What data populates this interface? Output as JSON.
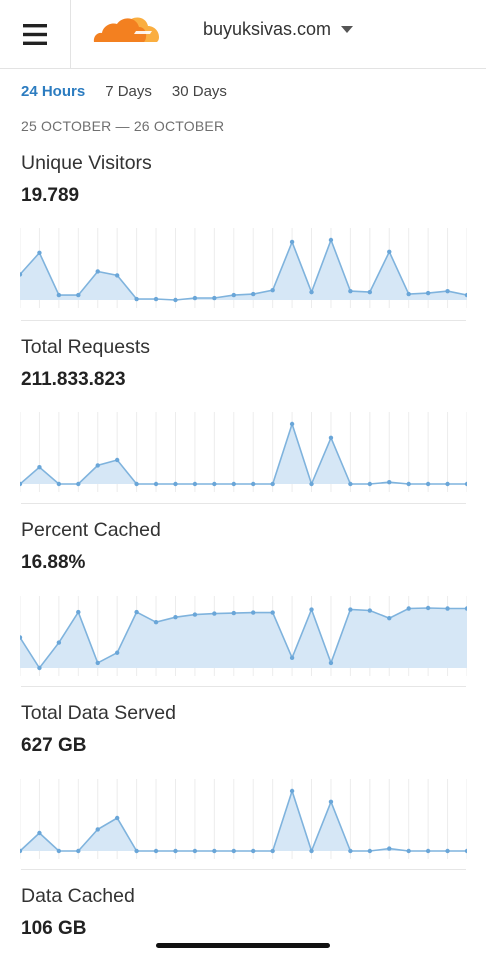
{
  "header": {
    "domain": "buyuksivas.com",
    "brand_colors": {
      "orange": "#f38020",
      "light_orange": "#faae40"
    }
  },
  "tabs": [
    {
      "label": "24 Hours",
      "active": true
    },
    {
      "label": "7 Days",
      "active": false
    },
    {
      "label": "30 Days",
      "active": false
    }
  ],
  "date_range": "25 OCTOBER — 26 OCTOBER",
  "chart_colors": {
    "line": "#7fb3dd",
    "fill": "#d6e7f6",
    "point": "#6aa6d8",
    "grid": "#ececec"
  },
  "metrics": [
    {
      "title": "Unique Visitors",
      "value": "19.789"
    },
    {
      "title": "Total Requests",
      "value": "211.833.823"
    },
    {
      "title": "Percent Cached",
      "value": "16.88%"
    },
    {
      "title": "Total Data Served",
      "value": "627 GB"
    },
    {
      "title": "Data Cached",
      "value": "106 GB"
    }
  ],
  "chart_data": [
    {
      "type": "area",
      "series": [
        {
          "values": [
            27,
            49,
            6,
            6,
            30,
            26,
            2,
            2,
            1,
            3,
            3,
            6,
            7,
            11,
            60,
            9,
            62,
            10,
            9,
            50,
            7,
            8,
            10,
            6
          ]
        }
      ]
    },
    {
      "type": "area",
      "series": [
        {
          "values": [
            0,
            28,
            0,
            0,
            31,
            40,
            0,
            0,
            0,
            0,
            0,
            0,
            0,
            0,
            100,
            0,
            77,
            0,
            0,
            3,
            0,
            0,
            0,
            0
          ]
        }
      ]
    },
    {
      "type": "area",
      "series": [
        {
          "values": [
            12,
            6,
            11,
            17,
            7,
            9,
            17,
            15,
            16,
            16.5,
            16.7,
            16.8,
            16.9,
            16.9,
            8,
            17.5,
            7,
            17.5,
            17.3,
            15.8,
            17.7,
            17.8,
            17.7,
            17.7
          ]
        }
      ]
    },
    {
      "type": "area",
      "series": [
        {
          "values": [
            0,
            30,
            0,
            0,
            36,
            55,
            0,
            0,
            0,
            0,
            0,
            0,
            0,
            0,
            100,
            0,
            82,
            0,
            0,
            4,
            0,
            0,
            0,
            0
          ]
        }
      ]
    }
  ]
}
